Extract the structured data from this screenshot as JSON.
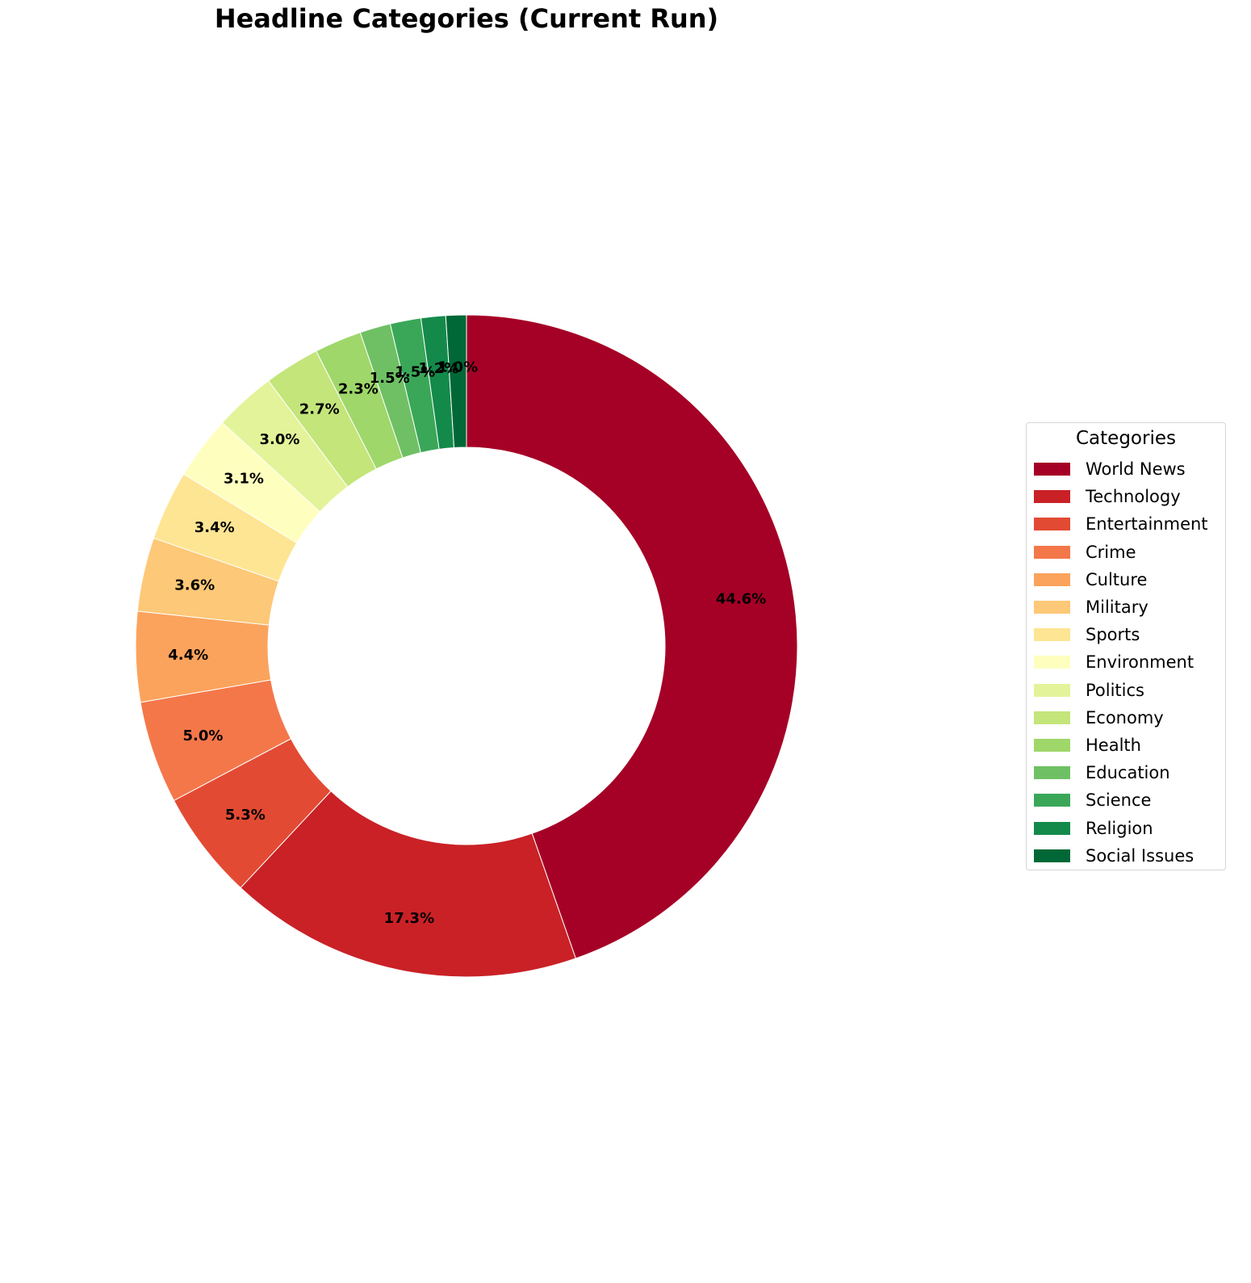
{
  "chart_data": {
    "type": "pie",
    "title": "Headline Categories (Current Run)",
    "legend_title": "Categories",
    "legend_position": "right",
    "donut": true,
    "start_angle_deg": 90,
    "direction": "clockwise",
    "categories": [
      "World News",
      "Technology",
      "Entertainment",
      "Crime",
      "Culture",
      "Military",
      "Sports",
      "Environment",
      "Politics",
      "Economy",
      "Health",
      "Education",
      "Science",
      "Religion",
      "Social Issues"
    ],
    "values": [
      44.6,
      17.3,
      5.3,
      5.0,
      4.4,
      3.6,
      3.4,
      3.1,
      3.0,
      2.7,
      2.3,
      1.5,
      1.5,
      1.2,
      1.0
    ],
    "labels": [
      "44.6%",
      "17.3%",
      "5.3%",
      "5.0%",
      "4.4%",
      "3.6%",
      "3.4%",
      "3.1%",
      "3.0%",
      "2.7%",
      "2.3%",
      "1.5%",
      "1.5%",
      "1.2%",
      "1.0%"
    ],
    "colors": [
      "#a50026",
      "#c92126",
      "#e34a33",
      "#f4774a",
      "#fba35c",
      "#fdc877",
      "#fee593",
      "#feffbe",
      "#e3f399",
      "#c3e57a",
      "#9fd76a",
      "#6fc064",
      "#3aa758",
      "#138a4a",
      "#006837"
    ]
  }
}
